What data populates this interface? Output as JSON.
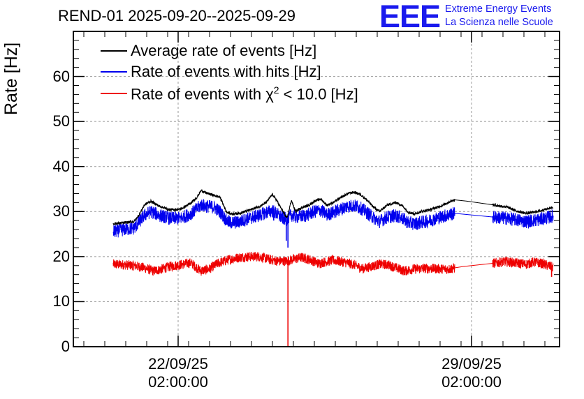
{
  "chart_data": {
    "type": "line",
    "title": "REND-01 2025-09-20--2025-09-29",
    "xlabel": "",
    "ylabel": "Rate [Hz]",
    "ylim": [
      0,
      70
    ],
    "yticks": [
      0,
      10,
      20,
      30,
      40,
      50,
      60
    ],
    "xlim_days": [
      0,
      11.6
    ],
    "xticks": [
      {
        "day": 2.5,
        "date": "22/09/25",
        "time": "02:00:00"
      },
      {
        "day": 9.5,
        "date": "29/09/25",
        "time": "02:00:00"
      }
    ],
    "grid": true,
    "legend_position": "top-left",
    "series": [
      {
        "name": "Average rate of events [Hz]",
        "color": "#000000",
        "noise": 0.3,
        "points": [
          [
            0.95,
            27.3
          ],
          [
            1.2,
            27.5
          ],
          [
            1.45,
            27.8
          ],
          [
            1.55,
            29
          ],
          [
            1.7,
            31.5
          ],
          [
            1.85,
            32.3
          ],
          [
            2.05,
            31.2
          ],
          [
            2.3,
            30.4
          ],
          [
            2.55,
            30.5
          ],
          [
            2.8,
            31.8
          ],
          [
            2.95,
            33.2
          ],
          [
            3.05,
            34.7
          ],
          [
            3.15,
            34.2
          ],
          [
            3.35,
            33.6
          ],
          [
            3.5,
            33.2
          ],
          [
            3.65,
            30
          ],
          [
            3.75,
            29.5
          ],
          [
            3.95,
            29.6
          ],
          [
            4.2,
            30.3
          ],
          [
            4.45,
            31.2
          ],
          [
            4.6,
            32
          ],
          [
            4.75,
            33.8
          ],
          [
            4.85,
            32.5
          ],
          [
            5.0,
            30
          ],
          [
            5.1,
            28.5
          ],
          [
            5.2,
            32.5
          ],
          [
            5.3,
            30
          ],
          [
            5.45,
            30.9
          ],
          [
            5.6,
            31.3
          ],
          [
            5.75,
            32.3
          ],
          [
            5.9,
            32.8
          ],
          [
            6.05,
            31.4
          ],
          [
            6.2,
            32
          ],
          [
            6.4,
            33.2
          ],
          [
            6.55,
            34
          ],
          [
            6.7,
            34.3
          ],
          [
            6.85,
            33.8
          ],
          [
            7.0,
            32.6
          ],
          [
            7.15,
            31.1
          ],
          [
            7.3,
            30
          ],
          [
            7.5,
            31.5
          ],
          [
            7.7,
            32
          ],
          [
            7.85,
            31.3
          ],
          [
            8.0,
            29.8
          ],
          [
            8.15,
            29.5
          ],
          [
            8.3,
            30
          ],
          [
            8.5,
            30.4
          ],
          [
            8.7,
            31
          ],
          [
            8.85,
            31.6
          ],
          [
            9.0,
            32.3
          ],
          [
            9.1,
            32.6
          ],
          [
            9.4,
            32.3
          ],
          [
            10.0,
            31.5
          ],
          [
            10.35,
            31
          ],
          [
            10.55,
            30.2
          ],
          [
            10.8,
            29.6
          ],
          [
            10.95,
            29.8
          ],
          [
            11.15,
            30.2
          ],
          [
            11.45,
            31
          ]
        ]
      },
      {
        "name": "Rate of events with hits [Hz]",
        "color": "#0000ee",
        "noise": 1.5,
        "points": [
          [
            0.95,
            25.5
          ],
          [
            1.2,
            26
          ],
          [
            1.45,
            26.3
          ],
          [
            1.55,
            27.5
          ],
          [
            1.7,
            29.2
          ],
          [
            1.85,
            30
          ],
          [
            2.05,
            29.2
          ],
          [
            2.3,
            28.5
          ],
          [
            2.55,
            28.5
          ],
          [
            2.8,
            29.5
          ],
          [
            2.95,
            30.6
          ],
          [
            3.05,
            31.5
          ],
          [
            3.15,
            31.2
          ],
          [
            3.35,
            31
          ],
          [
            3.5,
            30
          ],
          [
            3.65,
            28
          ],
          [
            3.75,
            27.5
          ],
          [
            3.95,
            27.7
          ],
          [
            4.2,
            28.5
          ],
          [
            4.45,
            29.2
          ],
          [
            4.6,
            29.8
          ],
          [
            4.75,
            30.2
          ],
          [
            4.85,
            29.5
          ],
          [
            5.0,
            28.5
          ],
          [
            5.1,
            28.3
          ],
          [
            5.2,
            29.3
          ],
          [
            5.3,
            28.8
          ],
          [
            5.45,
            29
          ],
          [
            5.6,
            29.3
          ],
          [
            5.75,
            30
          ],
          [
            5.9,
            30.3
          ],
          [
            6.05,
            29.3
          ],
          [
            6.2,
            29.8
          ],
          [
            6.4,
            30.6
          ],
          [
            6.55,
            31.2
          ],
          [
            6.7,
            31.3
          ],
          [
            6.85,
            30.8
          ],
          [
            7.0,
            29.8
          ],
          [
            7.15,
            28.7
          ],
          [
            7.3,
            27.8
          ],
          [
            7.5,
            28.8
          ],
          [
            7.7,
            29.1
          ],
          [
            7.85,
            28.5
          ],
          [
            8.0,
            27.5
          ],
          [
            8.15,
            27.3
          ],
          [
            8.3,
            27.6
          ],
          [
            8.5,
            28
          ],
          [
            8.7,
            28.6
          ],
          [
            8.85,
            29
          ],
          [
            9.0,
            29.4
          ],
          [
            9.1,
            29.6
          ],
          [
            10.0,
            28.8
          ],
          [
            10.35,
            28.5
          ],
          [
            10.55,
            28.2
          ],
          [
            10.8,
            27.8
          ],
          [
            10.95,
            28
          ],
          [
            11.15,
            28.3
          ],
          [
            11.45,
            29
          ]
        ]
      },
      {
        "name": "Rate of events with χ2 < 10.0 [Hz]",
        "color": "#ee0000",
        "noise": 1.1,
        "points": [
          [
            0.95,
            18.3
          ],
          [
            1.2,
            18.2
          ],
          [
            1.45,
            18
          ],
          [
            1.7,
            17.5
          ],
          [
            1.9,
            16.8
          ],
          [
            2.1,
            17.2
          ],
          [
            2.3,
            17.8
          ],
          [
            2.55,
            18.2
          ],
          [
            2.8,
            18.6
          ],
          [
            2.95,
            17.5
          ],
          [
            3.05,
            16.8
          ],
          [
            3.25,
            17.3
          ],
          [
            3.45,
            18.5
          ],
          [
            3.7,
            19.3
          ],
          [
            3.95,
            19.8
          ],
          [
            4.2,
            20
          ],
          [
            4.45,
            20
          ],
          [
            4.7,
            19.3
          ],
          [
            4.9,
            19
          ],
          [
            5.1,
            19
          ],
          [
            5.25,
            19.4
          ],
          [
            5.45,
            19.8
          ],
          [
            5.65,
            19.3
          ],
          [
            5.85,
            18.5
          ],
          [
            6.0,
            18.8
          ],
          [
            6.2,
            19.2
          ],
          [
            6.45,
            18.8
          ],
          [
            6.7,
            18.2
          ],
          [
            6.9,
            17.3
          ],
          [
            7.1,
            17.8
          ],
          [
            7.3,
            18.3
          ],
          [
            7.5,
            18.2
          ],
          [
            7.7,
            17.5
          ],
          [
            7.9,
            16.8
          ],
          [
            8.1,
            17.2
          ],
          [
            8.4,
            17.4
          ],
          [
            8.7,
            17.3
          ],
          [
            8.95,
            17.2
          ],
          [
            9.1,
            17.5
          ],
          [
            9.3,
            17.8
          ],
          [
            10.0,
            18.5
          ],
          [
            10.3,
            18.9
          ],
          [
            10.55,
            18.6
          ],
          [
            10.8,
            18.3
          ],
          [
            11.0,
            18.8
          ],
          [
            11.2,
            18.4
          ],
          [
            11.45,
            17.6
          ]
        ]
      }
    ],
    "gaps": [
      {
        "from_day": 9.1,
        "to_day": 10.0,
        "style": "straight-line"
      }
    ],
    "spikes": [
      {
        "series": 1,
        "day": 4.78,
        "value": 28.0
      },
      {
        "series": 1,
        "day": 5.08,
        "value": 23.5
      },
      {
        "series": 1,
        "day": 5.12,
        "value": 22.0
      },
      {
        "series": 2,
        "day": 5.12,
        "value": 0.0
      },
      {
        "series": 2,
        "day": 11.41,
        "value": 15.5
      }
    ]
  },
  "legend": {
    "items": [
      {
        "text": "Average rate of events [Hz]",
        "color": "#000000"
      },
      {
        "text": "Rate of events with hits [Hz]",
        "color": "#0000ee"
      },
      {
        "text_main": "Rate of events with χ",
        "text_sup": "2",
        "text_tail": " < 10.0 [Hz]",
        "color": "#ee0000"
      }
    ]
  },
  "logo": {
    "letters": "EEE",
    "line1": "Extreme Energy Events",
    "line2": "La Scienza nelle Scuole"
  }
}
